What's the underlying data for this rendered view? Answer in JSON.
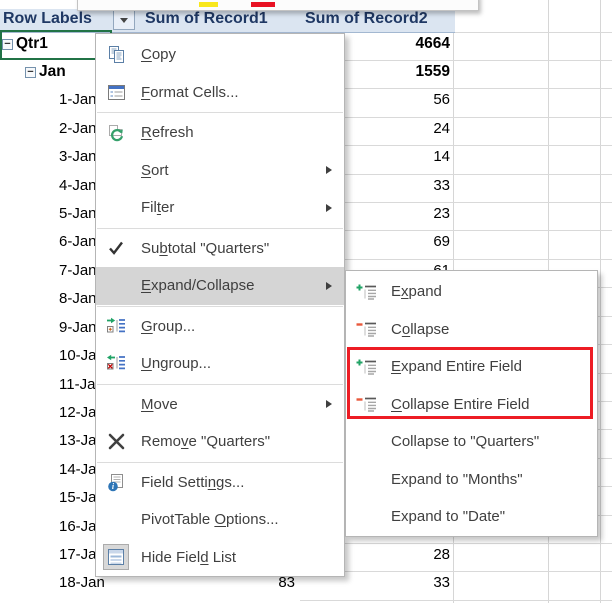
{
  "colors": {
    "header_bg": "#dbe5f1",
    "header_text": "#1f3864",
    "selection_green": "#217346",
    "menu_highlight": "#d5d5d5",
    "annotation_red": "#ed1c24",
    "swatch_yellow": "#f8e71c",
    "swatch_red": "#e81123",
    "expand_plus_green": "#21a366",
    "collapse_minus_red": "#e8593c",
    "refresh_green": "#35a06b"
  },
  "minibar": {
    "yellow_swatch": "fill-color-yellow",
    "red_swatch": "font-color-red"
  },
  "pivot": {
    "header": {
      "row_labels": "Row Labels",
      "col1": "Sum of Record1",
      "col2": "Sum of Record2"
    },
    "rows": [
      {
        "label": "Qtr1",
        "level": 1,
        "bold": true,
        "collapse_button": true,
        "r1": "",
        "r2": "4664"
      },
      {
        "label": "Jan",
        "level": 2,
        "bold": true,
        "collapse_button": true,
        "r1": "",
        "r2": "1559"
      },
      {
        "label": "1-Jan",
        "level": 3,
        "bold": false,
        "collapse_button": false,
        "r1": "",
        "r2": "56"
      },
      {
        "label": "2-Jan",
        "level": 3,
        "bold": false,
        "collapse_button": false,
        "r1": "",
        "r2": "24"
      },
      {
        "label": "3-Jan",
        "level": 3,
        "bold": false,
        "collapse_button": false,
        "r1": "",
        "r2": "14"
      },
      {
        "label": "4-Jan",
        "level": 3,
        "bold": false,
        "collapse_button": false,
        "r1": "",
        "r2": "33"
      },
      {
        "label": "5-Jan",
        "level": 3,
        "bold": false,
        "collapse_button": false,
        "r1": "",
        "r2": "23"
      },
      {
        "label": "6-Jan",
        "level": 3,
        "bold": false,
        "collapse_button": false,
        "r1": "",
        "r2": "69"
      },
      {
        "label": "7-Jan",
        "level": 3,
        "bold": false,
        "collapse_button": false,
        "r1": "",
        "r2": "61"
      },
      {
        "label": "8-Jan",
        "level": 3,
        "bold": false,
        "collapse_button": false,
        "r1": "",
        "r2": ""
      },
      {
        "label": "9-Jan",
        "level": 3,
        "bold": false,
        "collapse_button": false,
        "r1": "",
        "r2": ""
      },
      {
        "label": "10-Jan",
        "level": 3,
        "bold": false,
        "collapse_button": false,
        "r1": "",
        "r2": ""
      },
      {
        "label": "11-Jan",
        "level": 3,
        "bold": false,
        "collapse_button": false,
        "r1": "",
        "r2": ""
      },
      {
        "label": "12-Jan",
        "level": 3,
        "bold": false,
        "collapse_button": false,
        "r1": "",
        "r2": ""
      },
      {
        "label": "13-Jan",
        "level": 3,
        "bold": false,
        "collapse_button": false,
        "r1": "",
        "r2": ""
      },
      {
        "label": "14-Jan",
        "level": 3,
        "bold": false,
        "collapse_button": false,
        "r1": "",
        "r2": ""
      },
      {
        "label": "15-Jan",
        "level": 3,
        "bold": false,
        "collapse_button": false,
        "r1": "",
        "r2": ""
      },
      {
        "label": "16-Jan",
        "level": 3,
        "bold": false,
        "collapse_button": false,
        "r1": "",
        "r2": "29"
      },
      {
        "label": "17-Jan",
        "level": 3,
        "bold": false,
        "collapse_button": false,
        "r1": "",
        "r2": "28"
      },
      {
        "label": "18-Jan",
        "level": 3,
        "bold": false,
        "collapse_button": false,
        "r1": "83",
        "r2": "33"
      }
    ]
  },
  "context_menu": {
    "items": [
      {
        "name": "copy",
        "icon": "copy-icon",
        "pre": "",
        "accel": "C",
        "post": "opy",
        "arrow": false,
        "sep_after": false,
        "highlight": false
      },
      {
        "name": "format-cells",
        "icon": "format-cells-icon",
        "pre": "",
        "accel": "F",
        "post": "ormat Cells...",
        "arrow": false,
        "sep_after": true,
        "highlight": false
      },
      {
        "name": "refresh",
        "icon": "refresh-icon",
        "pre": "",
        "accel": "R",
        "post": "efresh",
        "arrow": false,
        "sep_after": false,
        "highlight": false
      },
      {
        "name": "sort",
        "icon": "",
        "pre": "",
        "accel": "S",
        "post": "ort",
        "arrow": true,
        "sep_after": false,
        "highlight": false
      },
      {
        "name": "filter",
        "icon": "",
        "pre": "Fil",
        "accel": "t",
        "post": "er",
        "arrow": true,
        "sep_after": true,
        "highlight": false
      },
      {
        "name": "subtotal-quarters",
        "icon": "check-icon",
        "pre": "Su",
        "accel": "b",
        "post": "total \"Quarters\"",
        "arrow": false,
        "sep_after": false,
        "highlight": false
      },
      {
        "name": "expand-collapse",
        "icon": "",
        "pre": "",
        "accel": "E",
        "post": "xpand/Collapse",
        "arrow": true,
        "sep_after": true,
        "highlight": true
      },
      {
        "name": "group",
        "icon": "group-icon",
        "pre": "",
        "accel": "G",
        "post": "roup...",
        "arrow": false,
        "sep_after": false,
        "highlight": false
      },
      {
        "name": "ungroup",
        "icon": "ungroup-icon",
        "pre": "",
        "accel": "U",
        "post": "ngroup...",
        "arrow": false,
        "sep_after": true,
        "highlight": false
      },
      {
        "name": "move",
        "icon": "",
        "pre": "",
        "accel": "M",
        "post": "ove",
        "arrow": true,
        "sep_after": false,
        "highlight": false
      },
      {
        "name": "remove-quarters",
        "icon": "remove-x-icon",
        "pre": "Remo",
        "accel": "v",
        "post": "e \"Quarters\"",
        "arrow": false,
        "sep_after": true,
        "highlight": false
      },
      {
        "name": "field-settings",
        "icon": "field-settings-icon",
        "pre": "Field Setti",
        "accel": "n",
        "post": "gs...",
        "arrow": false,
        "sep_after": false,
        "highlight": false
      },
      {
        "name": "pivottable-options",
        "icon": "",
        "pre": "PivotTable ",
        "accel": "O",
        "post": "ptions...",
        "arrow": false,
        "sep_after": false,
        "highlight": false
      },
      {
        "name": "hide-field-list",
        "icon": "hide-field-list-icon",
        "pre": "Hide Fiel",
        "accel": "d",
        "post": " List",
        "arrow": false,
        "sep_after": false,
        "highlight": false,
        "icon_pressed": true
      }
    ]
  },
  "submenu": {
    "items": [
      {
        "name": "expand",
        "icon": "expand-icon",
        "pre": "E",
        "accel": "x",
        "post": "pand"
      },
      {
        "name": "collapse",
        "icon": "collapse-icon",
        "pre": "C",
        "accel": "o",
        "post": "llapse"
      },
      {
        "name": "expand-entire-field",
        "icon": "expand-icon",
        "pre": "",
        "accel": "E",
        "post": "xpand Entire Field"
      },
      {
        "name": "collapse-entire-field",
        "icon": "collapse-icon",
        "pre": "",
        "accel": "C",
        "post": "ollapse Entire Field"
      },
      {
        "name": "collapse-to-quarters",
        "icon": "",
        "pre": "Collapse to \"Quarters\"",
        "accel": "",
        "post": ""
      },
      {
        "name": "expand-to-months",
        "icon": "",
        "pre": "Expand to \"Months\"",
        "accel": "",
        "post": ""
      },
      {
        "name": "expand-to-date",
        "icon": "",
        "pre": "Expand to \"Date\"",
        "accel": "",
        "post": ""
      }
    ]
  },
  "annotation": {
    "highlighted_items": "Expand Entire Field / Collapse Entire Field"
  }
}
